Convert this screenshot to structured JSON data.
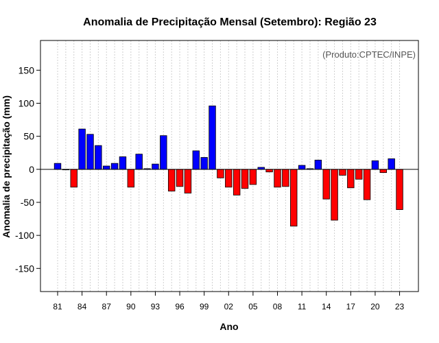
{
  "chart_data": {
    "type": "bar",
    "title": "Anomalia de Precipitação Mensal (Setembro): Região 23",
    "xlabel": "Ano",
    "ylabel": "Anomalia de precipitação (mm)",
    "annotation": "(Produto:CPTEC/INPE)",
    "ylim": [
      -185,
      195
    ],
    "yticks": [
      -150,
      -100,
      -50,
      0,
      50,
      100,
      150
    ],
    "grid": "vertical dotted",
    "x_tick_years": [
      1981,
      1984,
      1987,
      1990,
      1993,
      1996,
      1999,
      2002,
      2005,
      2008,
      2011,
      2014,
      2017,
      2020,
      2023
    ],
    "x_tick_labels": [
      "81",
      "84",
      "87",
      "90",
      "93",
      "96",
      "99",
      "02",
      "05",
      "08",
      "11",
      "14",
      "17",
      "20",
      "23"
    ],
    "positive_color": "#0000ff",
    "negative_color": "#ff0000",
    "years": [
      1981,
      1982,
      1983,
      1984,
      1985,
      1986,
      1987,
      1988,
      1989,
      1990,
      1991,
      1992,
      1993,
      1994,
      1995,
      1996,
      1997,
      1998,
      1999,
      2000,
      2001,
      2002,
      2003,
      2004,
      2005,
      2006,
      2007,
      2008,
      2009,
      2010,
      2011,
      2012,
      2013,
      2014,
      2015,
      2016,
      2017,
      2018,
      2019,
      2020,
      2021,
      2022,
      2023
    ],
    "values": [
      9,
      0,
      -27,
      61,
      53,
      36,
      5,
      9,
      19,
      -27,
      23,
      1,
      8,
      51,
      -33,
      -26,
      -36,
      28,
      18,
      96,
      -13,
      -27,
      -39,
      -29,
      -23,
      3,
      -4,
      -27,
      -26,
      -86,
      6,
      1,
      14,
      -45,
      -77,
      -9,
      -28,
      -15,
      -46,
      13,
      -5,
      16,
      -61
    ]
  }
}
